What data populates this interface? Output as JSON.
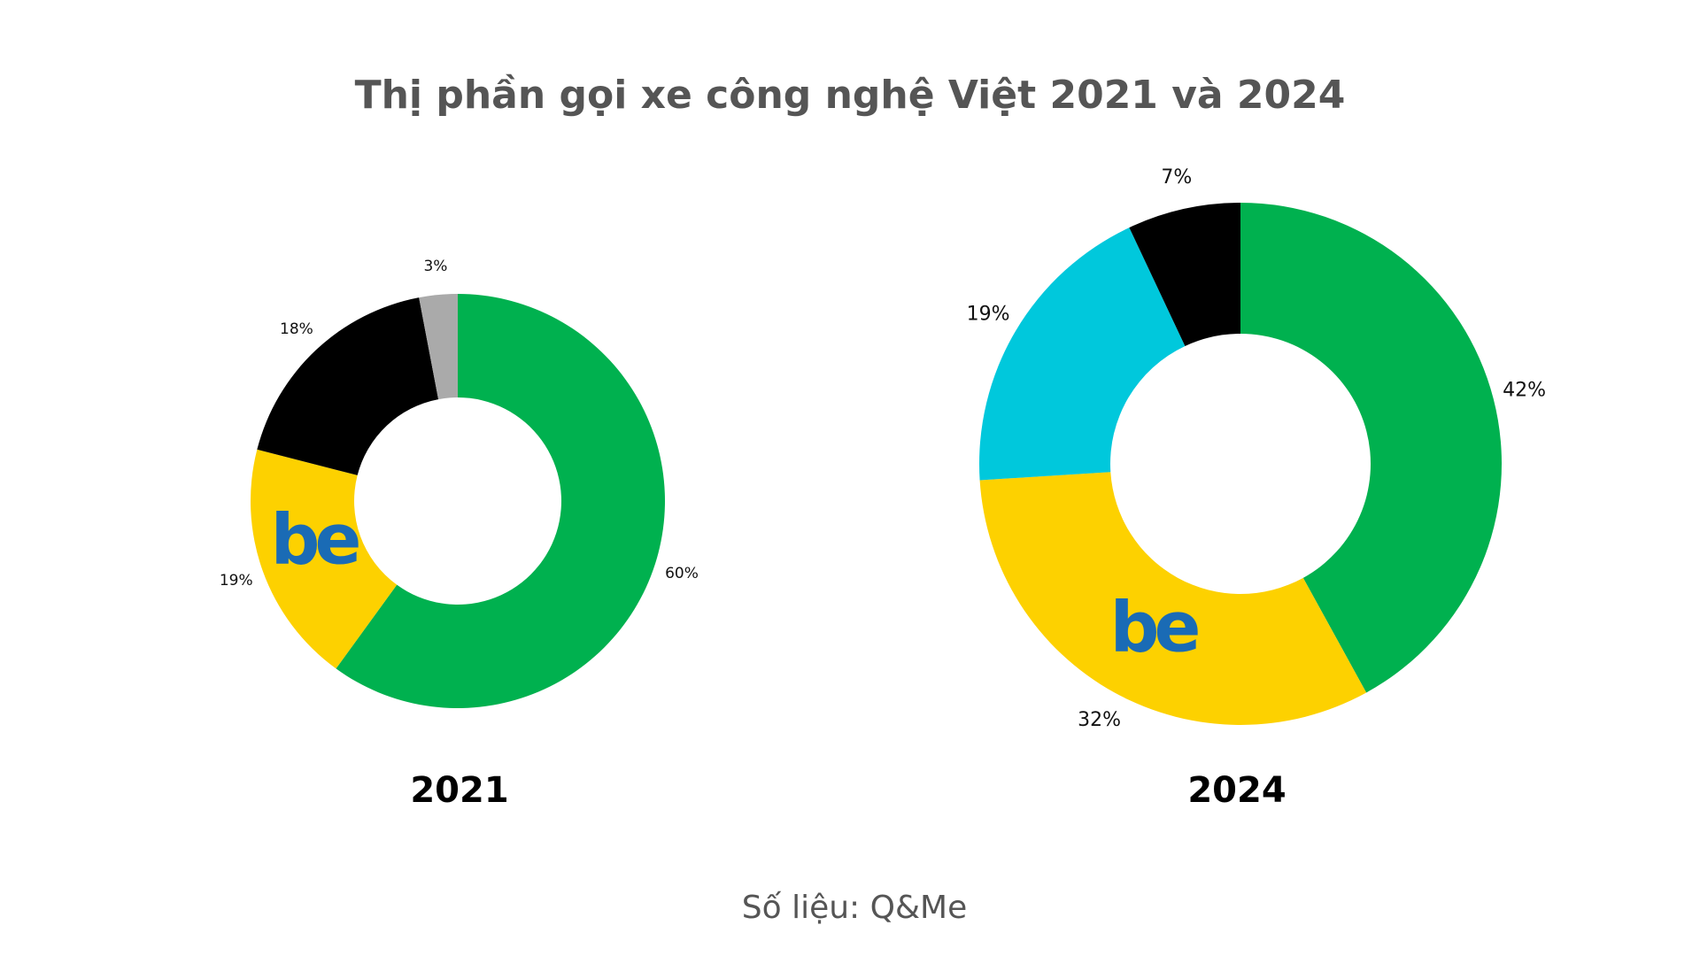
{
  "title": "Thị phần gọi xe công nghệ Việt 2021 và 2024",
  "source": "Số liệu: Q&Me",
  "logo_text": "be",
  "chart_data": [
    {
      "type": "pie",
      "donut": true,
      "title": "2021",
      "direction": "clockwise from top",
      "slices": [
        {
          "value": 60,
          "label": "60%",
          "color": "#00b14f"
        },
        {
          "value": 19,
          "label": "19%",
          "color": "#fdd100",
          "logo": "be"
        },
        {
          "value": 18,
          "label": "18%",
          "color": "#000000"
        },
        {
          "value": 3,
          "label": "3%",
          "color": "#aaaaaa"
        }
      ]
    },
    {
      "type": "pie",
      "donut": true,
      "title": "2024",
      "direction": "clockwise from top",
      "slices": [
        {
          "value": 42,
          "label": "42%",
          "color": "#00b14f"
        },
        {
          "value": 32,
          "label": "32%",
          "color": "#fdd100",
          "logo": "be"
        },
        {
          "value": 19,
          "label": "19%",
          "color": "#00c8dc"
        },
        {
          "value": 7,
          "label": "7%",
          "color": "#000000"
        }
      ]
    }
  ]
}
